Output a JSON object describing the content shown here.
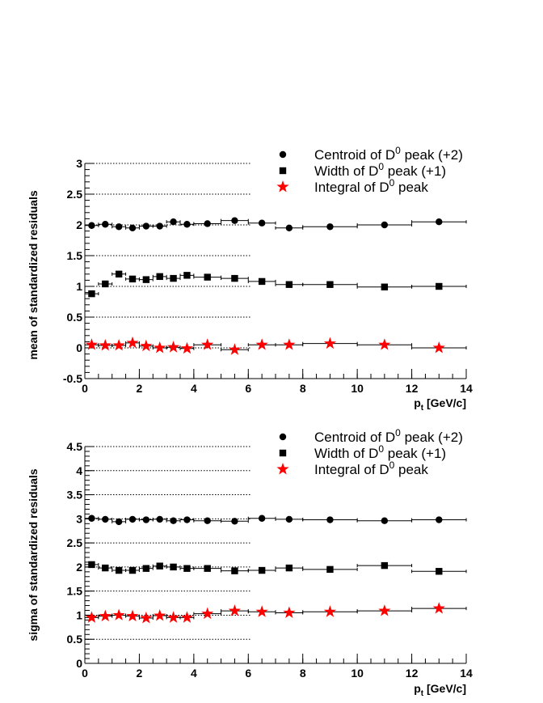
{
  "chart_data": [
    {
      "type": "scatter",
      "ylabel": "mean of standardized residuals",
      "xlabel_main": "p",
      "xlabel_sub": "t",
      "xlabel_unit": " [GeV/c]",
      "xlim": [
        0,
        14
      ],
      "ylim": [
        -0.5,
        3
      ],
      "xticks": [
        0,
        2,
        4,
        6,
        8,
        10,
        12,
        14
      ],
      "xtick_labels": [
        "0",
        "2",
        "4",
        "6",
        "8",
        "10",
        "12",
        "14"
      ],
      "yticks": [
        -0.5,
        0,
        0.5,
        1,
        1.5,
        2,
        2.5,
        3
      ],
      "ytick_labels": [
        "-0.5",
        "0",
        "0.5",
        "1",
        "1.5",
        "2",
        "2.5",
        "3"
      ],
      "reference_lines": [
        0,
        0.5,
        1,
        1.5,
        2,
        2.5,
        3
      ],
      "bins": [
        [
          0,
          0.5
        ],
        [
          0.5,
          1
        ],
        [
          1,
          1.5
        ],
        [
          1.5,
          2
        ],
        [
          2,
          2.5
        ],
        [
          2.5,
          3
        ],
        [
          3,
          3.5
        ],
        [
          3.5,
          4
        ],
        [
          4,
          5
        ],
        [
          5,
          6
        ],
        [
          6,
          7
        ],
        [
          7,
          8
        ],
        [
          8,
          10
        ],
        [
          10,
          12
        ],
        [
          12,
          14
        ]
      ],
      "legend_position": "top-right",
      "series": [
        {
          "name_pre": "Centroid of D",
          "name_sup": "0",
          "name_post": " peak (+2)",
          "marker": "circle",
          "color": "#000000",
          "x": [
            0.25,
            0.75,
            1.25,
            1.75,
            2.25,
            2.75,
            3.25,
            3.75,
            4.5,
            5.5,
            6.5,
            7.5,
            9,
            11,
            13
          ],
          "y": [
            1.99,
            2.01,
            1.97,
            1.95,
            1.98,
            1.98,
            2.05,
            2.01,
            2.02,
            2.07,
            2.03,
            1.95,
            1.97,
            2.0,
            2.05
          ]
        },
        {
          "name_pre": "Width of D",
          "name_sup": "0",
          "name_post": " peak (+1)",
          "marker": "square",
          "color": "#000000",
          "x": [
            0.25,
            0.75,
            1.25,
            1.75,
            2.25,
            2.75,
            3.25,
            3.75,
            4.5,
            5.5,
            6.5,
            7.5,
            9,
            11,
            13
          ],
          "y": [
            0.88,
            1.04,
            1.2,
            1.12,
            1.11,
            1.16,
            1.13,
            1.18,
            1.15,
            1.13,
            1.08,
            1.03,
            1.03,
            0.99,
            1.0
          ]
        },
        {
          "name_pre": "Integral of D",
          "name_sup": "0",
          "name_post": " peak",
          "marker": "star",
          "color": "#ff0000",
          "x": [
            0.25,
            0.75,
            1.25,
            1.75,
            2.25,
            2.75,
            3.25,
            3.75,
            4.5,
            5.5,
            6.5,
            7.5,
            9,
            11,
            13
          ],
          "y": [
            0.05,
            0.04,
            0.04,
            0.08,
            0.03,
            0.0,
            0.01,
            -0.01,
            0.05,
            -0.03,
            0.05,
            0.05,
            0.07,
            0.05,
            0.0
          ]
        }
      ]
    },
    {
      "type": "scatter",
      "ylabel": "sigma of standardized residuals",
      "xlabel_main": "p",
      "xlabel_sub": "t",
      "xlabel_unit": " [GeV/c]",
      "xlim": [
        0,
        14
      ],
      "ylim": [
        0,
        4.5
      ],
      "xticks": [
        0,
        2,
        4,
        6,
        8,
        10,
        12,
        14
      ],
      "xtick_labels": [
        "0",
        "2",
        "4",
        "6",
        "8",
        "10",
        "12",
        "14"
      ],
      "yticks": [
        0,
        0.5,
        1,
        1.5,
        2,
        2.5,
        3,
        3.5,
        4,
        4.5
      ],
      "ytick_labels": [
        "0",
        "0.5",
        "1",
        "1.5",
        "2",
        "2.5",
        "3",
        "3.5",
        "4",
        "4.5"
      ],
      "reference_lines": [
        0.5,
        1,
        1.5,
        2,
        2.5,
        3,
        3.5,
        4,
        4.5
      ],
      "bins": [
        [
          0,
          0.5
        ],
        [
          0.5,
          1
        ],
        [
          1,
          1.5
        ],
        [
          1.5,
          2
        ],
        [
          2,
          2.5
        ],
        [
          2.5,
          3
        ],
        [
          3,
          3.5
        ],
        [
          3.5,
          4
        ],
        [
          4,
          5
        ],
        [
          5,
          6
        ],
        [
          6,
          7
        ],
        [
          7,
          8
        ],
        [
          8,
          10
        ],
        [
          10,
          12
        ],
        [
          12,
          14
        ]
      ],
      "legend_position": "top-right",
      "series": [
        {
          "name_pre": "Centroid of D",
          "name_sup": "0",
          "name_post": " peak (+2)",
          "marker": "circle",
          "color": "#000000",
          "x": [
            0.25,
            0.75,
            1.25,
            1.75,
            2.25,
            2.75,
            3.25,
            3.75,
            4.5,
            5.5,
            6.5,
            7.5,
            9,
            11,
            13
          ],
          "y": [
            3.01,
            2.99,
            2.94,
            2.99,
            2.98,
            2.99,
            2.96,
            2.98,
            2.96,
            2.95,
            3.01,
            2.99,
            2.98,
            2.96,
            2.98
          ]
        },
        {
          "name_pre": "Width of D",
          "name_sup": "0",
          "name_post": " peak (+1)",
          "marker": "square",
          "color": "#000000",
          "x": [
            0.25,
            0.75,
            1.25,
            1.75,
            2.25,
            2.75,
            3.25,
            3.75,
            4.5,
            5.5,
            6.5,
            7.5,
            9,
            11,
            13
          ],
          "y": [
            2.05,
            1.98,
            1.93,
            1.93,
            1.97,
            2.02,
            2.0,
            1.97,
            1.97,
            1.92,
            1.93,
            1.98,
            1.95,
            2.03,
            1.91
          ]
        },
        {
          "name_pre": "Integral of D",
          "name_sup": "0",
          "name_post": " peak",
          "marker": "star",
          "color": "#ff0000",
          "x": [
            0.25,
            0.75,
            1.25,
            1.75,
            2.25,
            2.75,
            3.25,
            3.75,
            4.5,
            5.5,
            6.5,
            7.5,
            9,
            11,
            13
          ],
          "y": [
            0.95,
            0.98,
            1.0,
            0.98,
            0.94,
            0.99,
            0.95,
            0.95,
            1.03,
            1.09,
            1.07,
            1.05,
            1.07,
            1.09,
            1.14
          ]
        }
      ]
    }
  ]
}
